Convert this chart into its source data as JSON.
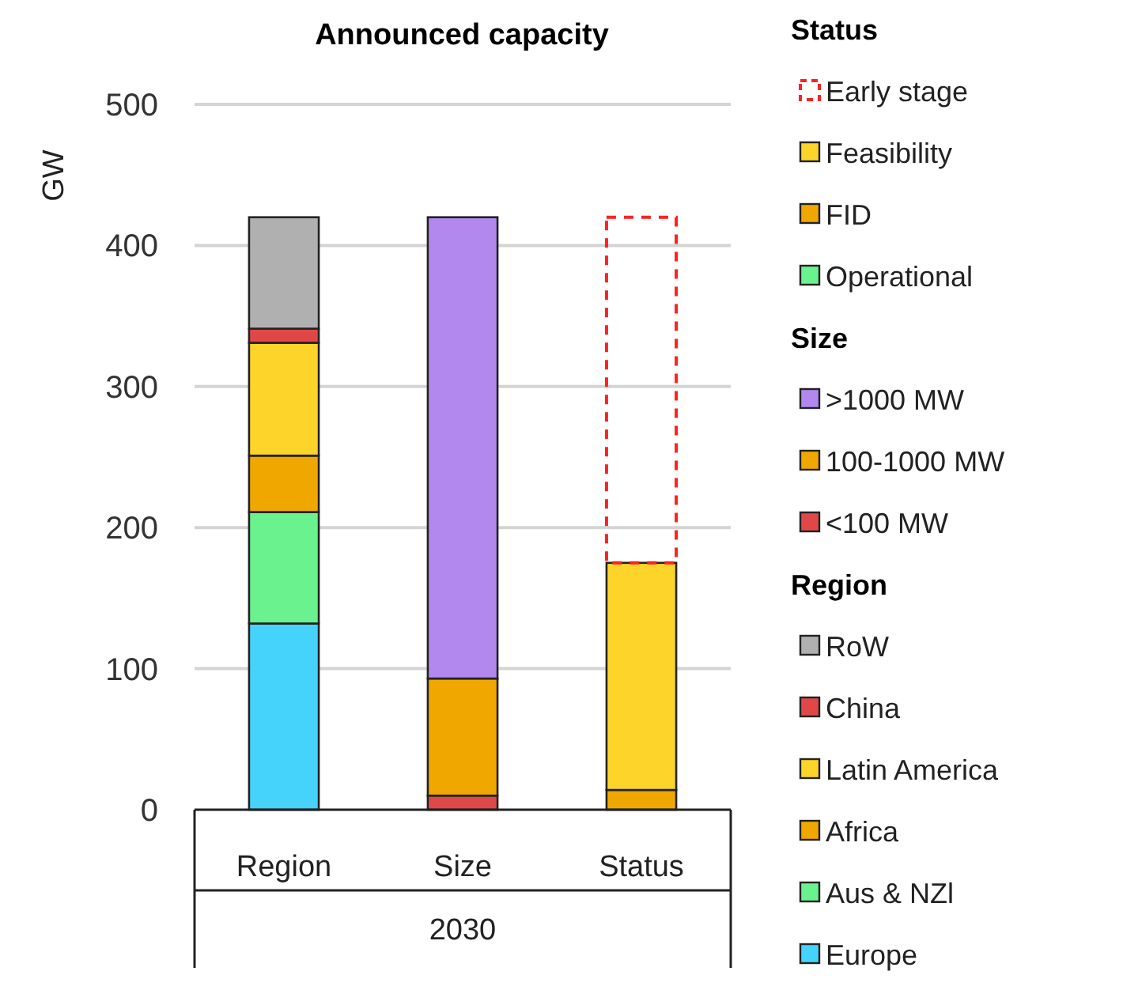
{
  "chart_data": {
    "type": "bar",
    "title": "Announced capacity",
    "ylabel": "GW",
    "xlabel": "2030",
    "categories": [
      "Region",
      "Size",
      "Status"
    ],
    "stacked": true,
    "ylim": [
      0,
      500
    ],
    "yticks": [
      0,
      100,
      200,
      300,
      400,
      500
    ],
    "grid": "y",
    "legend": "right",
    "annotations": [
      "Status",
      "Size",
      "Region"
    ],
    "series": [
      {
        "name": "Europe",
        "color": "#45d3fc",
        "values": [
          132,
          null,
          null
        ]
      },
      {
        "name": "Aus & NZl",
        "color": "#6af28e",
        "values": [
          79,
          null,
          null
        ]
      },
      {
        "name": "Africa",
        "color": "#f0a800",
        "values": [
          40,
          null,
          null
        ]
      },
      {
        "name": "Latin America",
        "color": "#fdd42a",
        "values": [
          80,
          null,
          null
        ]
      },
      {
        "name": "China",
        "color": "#e04848",
        "values": [
          10,
          null,
          null
        ]
      },
      {
        "name": "RoW",
        "color": "#b0b0b0",
        "values": [
          79,
          null,
          null
        ]
      },
      {
        "name": "<100 MW",
        "color": "#e04848",
        "values": [
          null,
          10,
          null
        ]
      },
      {
        "name": "100-1000 MW",
        "color": "#f0a800",
        "values": [
          null,
          83,
          null
        ]
      },
      {
        "name": ">1000 MW",
        "color": "#b388ee",
        "values": [
          null,
          327,
          null
        ]
      },
      {
        "name": "Operational",
        "color": "#6af28e",
        "values": [
          null,
          null,
          null
        ]
      },
      {
        "name": "FID",
        "color": "#f0a800",
        "values": [
          null,
          null,
          14
        ]
      },
      {
        "name": "Feasibility",
        "color": "#fdd42a",
        "values": [
          null,
          null,
          161
        ]
      },
      {
        "name": "Early stage",
        "color": "#ff2020",
        "line_style": "dashed",
        "values": [
          null,
          null,
          245
        ]
      }
    ]
  }
}
